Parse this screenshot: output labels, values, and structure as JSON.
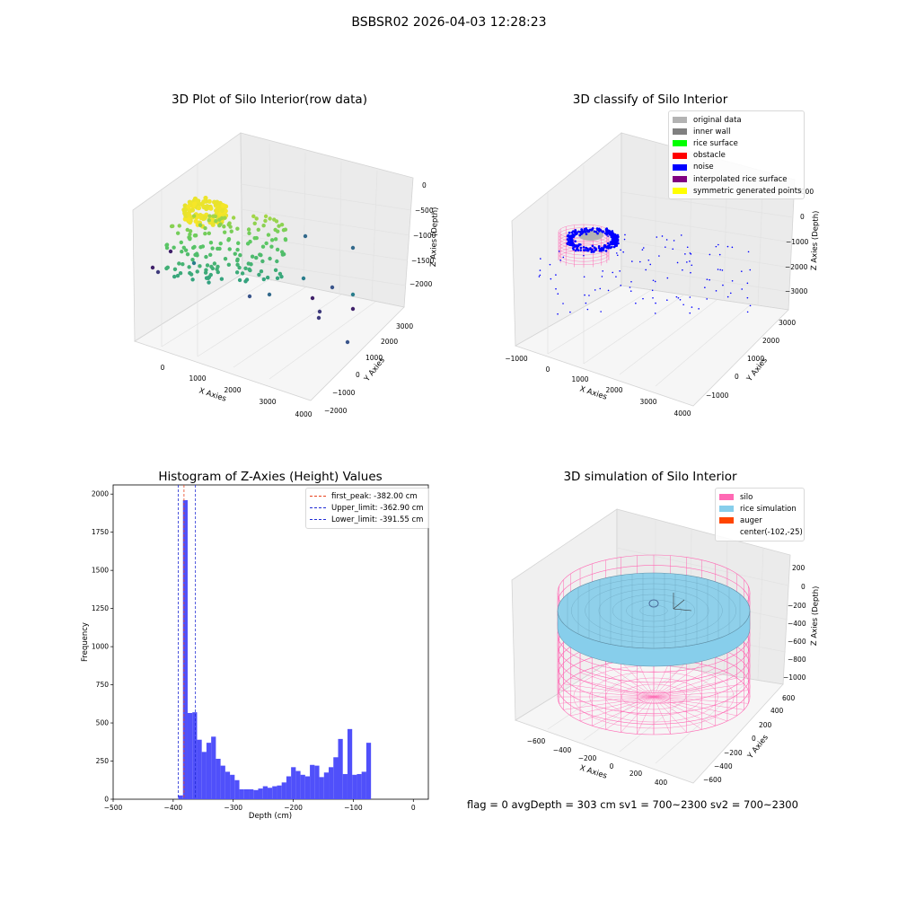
{
  "page": {
    "suptitle": "BSBSR02 2026-04-03 12:28:23",
    "footer": "flag = 0    avgDepth = 303 cm  sv1 = 700~2300  sv2 = 700~2300"
  },
  "chart_data": [
    {
      "id": "raw",
      "type": "scatter3d",
      "title": "3D Plot of Silo Interior(row data)",
      "xlabel": "X Axies",
      "ylabel": "Y Axies",
      "zlabel": "Z Axies (Depth)",
      "xticks": [
        "0",
        "1000",
        "2000",
        "3000",
        "4000"
      ],
      "yticks": [
        "−2000",
        "−1000",
        "0",
        "1000",
        "2000",
        "3000"
      ],
      "zticks": [
        "0",
        "−500",
        "−1000",
        "−1500",
        "−2000"
      ],
      "xlim": [
        -500,
        4000
      ],
      "ylim": [
        -2000,
        3500
      ],
      "zlim": [
        -2300,
        100
      ],
      "colormap": "viridis"
    },
    {
      "id": "classify",
      "type": "scatter3d",
      "title": "3D classify of Silo Interior",
      "xlabel": "X Axies",
      "ylabel": "Y Axies",
      "zlabel": "Z Axies (Depth)",
      "xticks": [
        "−1000",
        "0",
        "1000",
        "2000",
        "3000",
        "4000"
      ],
      "yticks": [
        "−1000",
        "0",
        "1000",
        "2000",
        "3000"
      ],
      "zticks": [
        "1000",
        "0",
        "−1000",
        "−2000",
        "−3000"
      ],
      "legend": [
        {
          "label": "original data",
          "color": "#b3b3b3"
        },
        {
          "label": "inner wall",
          "color": "#808080"
        },
        {
          "label": "rice surface",
          "color": "#00ff00"
        },
        {
          "label": "obstacle",
          "color": "#ff0000"
        },
        {
          "label": "noise",
          "color": "#0000ff"
        },
        {
          "label": "interpolated rice surface",
          "color": "#800080"
        },
        {
          "label": "symmetric generated points",
          "color": "#ffff00"
        }
      ]
    },
    {
      "id": "hist",
      "type": "bar",
      "title": "Histogram of Z-Axies (Height) Values",
      "xlabel": "Depth (cm)",
      "ylabel": "Frequency",
      "xlim": [
        -500,
        25
      ],
      "ylim": [
        0,
        2060
      ],
      "xticks": [
        -500,
        -400,
        -300,
        -200,
        -100,
        0
      ],
      "yticks": [
        0,
        250,
        500,
        750,
        1000,
        1250,
        1500,
        1750,
        2000
      ],
      "bar_color": "#5050fa",
      "bins_start": -391.55,
      "bin_width": 7.83,
      "values": [
        25,
        1960,
        565,
        570,
        390,
        310,
        370,
        410,
        265,
        220,
        180,
        160,
        125,
        65,
        65,
        65,
        60,
        70,
        85,
        75,
        85,
        90,
        110,
        150,
        210,
        185,
        160,
        150,
        225,
        220,
        145,
        175,
        210,
        275,
        395,
        165,
        460,
        160,
        165,
        180,
        370
      ],
      "vlines": [
        {
          "label": "first_peak: -382.00 cm",
          "x": -382.0,
          "color": "#e8431e"
        },
        {
          "label": "Upper_limit: -362.90 cm",
          "x": -362.9,
          "color": "#1f2bd4"
        },
        {
          "label": "Lower_limit: -391.55 cm",
          "x": -391.55,
          "color": "#1f2bd4"
        }
      ]
    },
    {
      "id": "sim",
      "type": "surface3d",
      "title": "3D simulation of Silo Interior",
      "xlabel": "X Axies",
      "ylabel": "Y Axies",
      "zlabel": "Z Axies (Depth)",
      "xticks": [
        "−600",
        "−400",
        "−200",
        "0",
        "200",
        "400"
      ],
      "yticks": [
        "−600",
        "−400",
        "−200",
        "0",
        "200",
        "400",
        "600"
      ],
      "zticks": [
        "200",
        "0",
        "−200",
        "−400",
        "−600",
        "−800",
        "−1000"
      ],
      "legend": [
        {
          "label": "silo",
          "color": "#ff69b4"
        },
        {
          "label": "rice simulation",
          "color": "#87ceeb"
        },
        {
          "label": "auger",
          "color": "#ff4500"
        },
        {
          "label": "center(-102,-25)",
          "color": ""
        }
      ]
    }
  ]
}
